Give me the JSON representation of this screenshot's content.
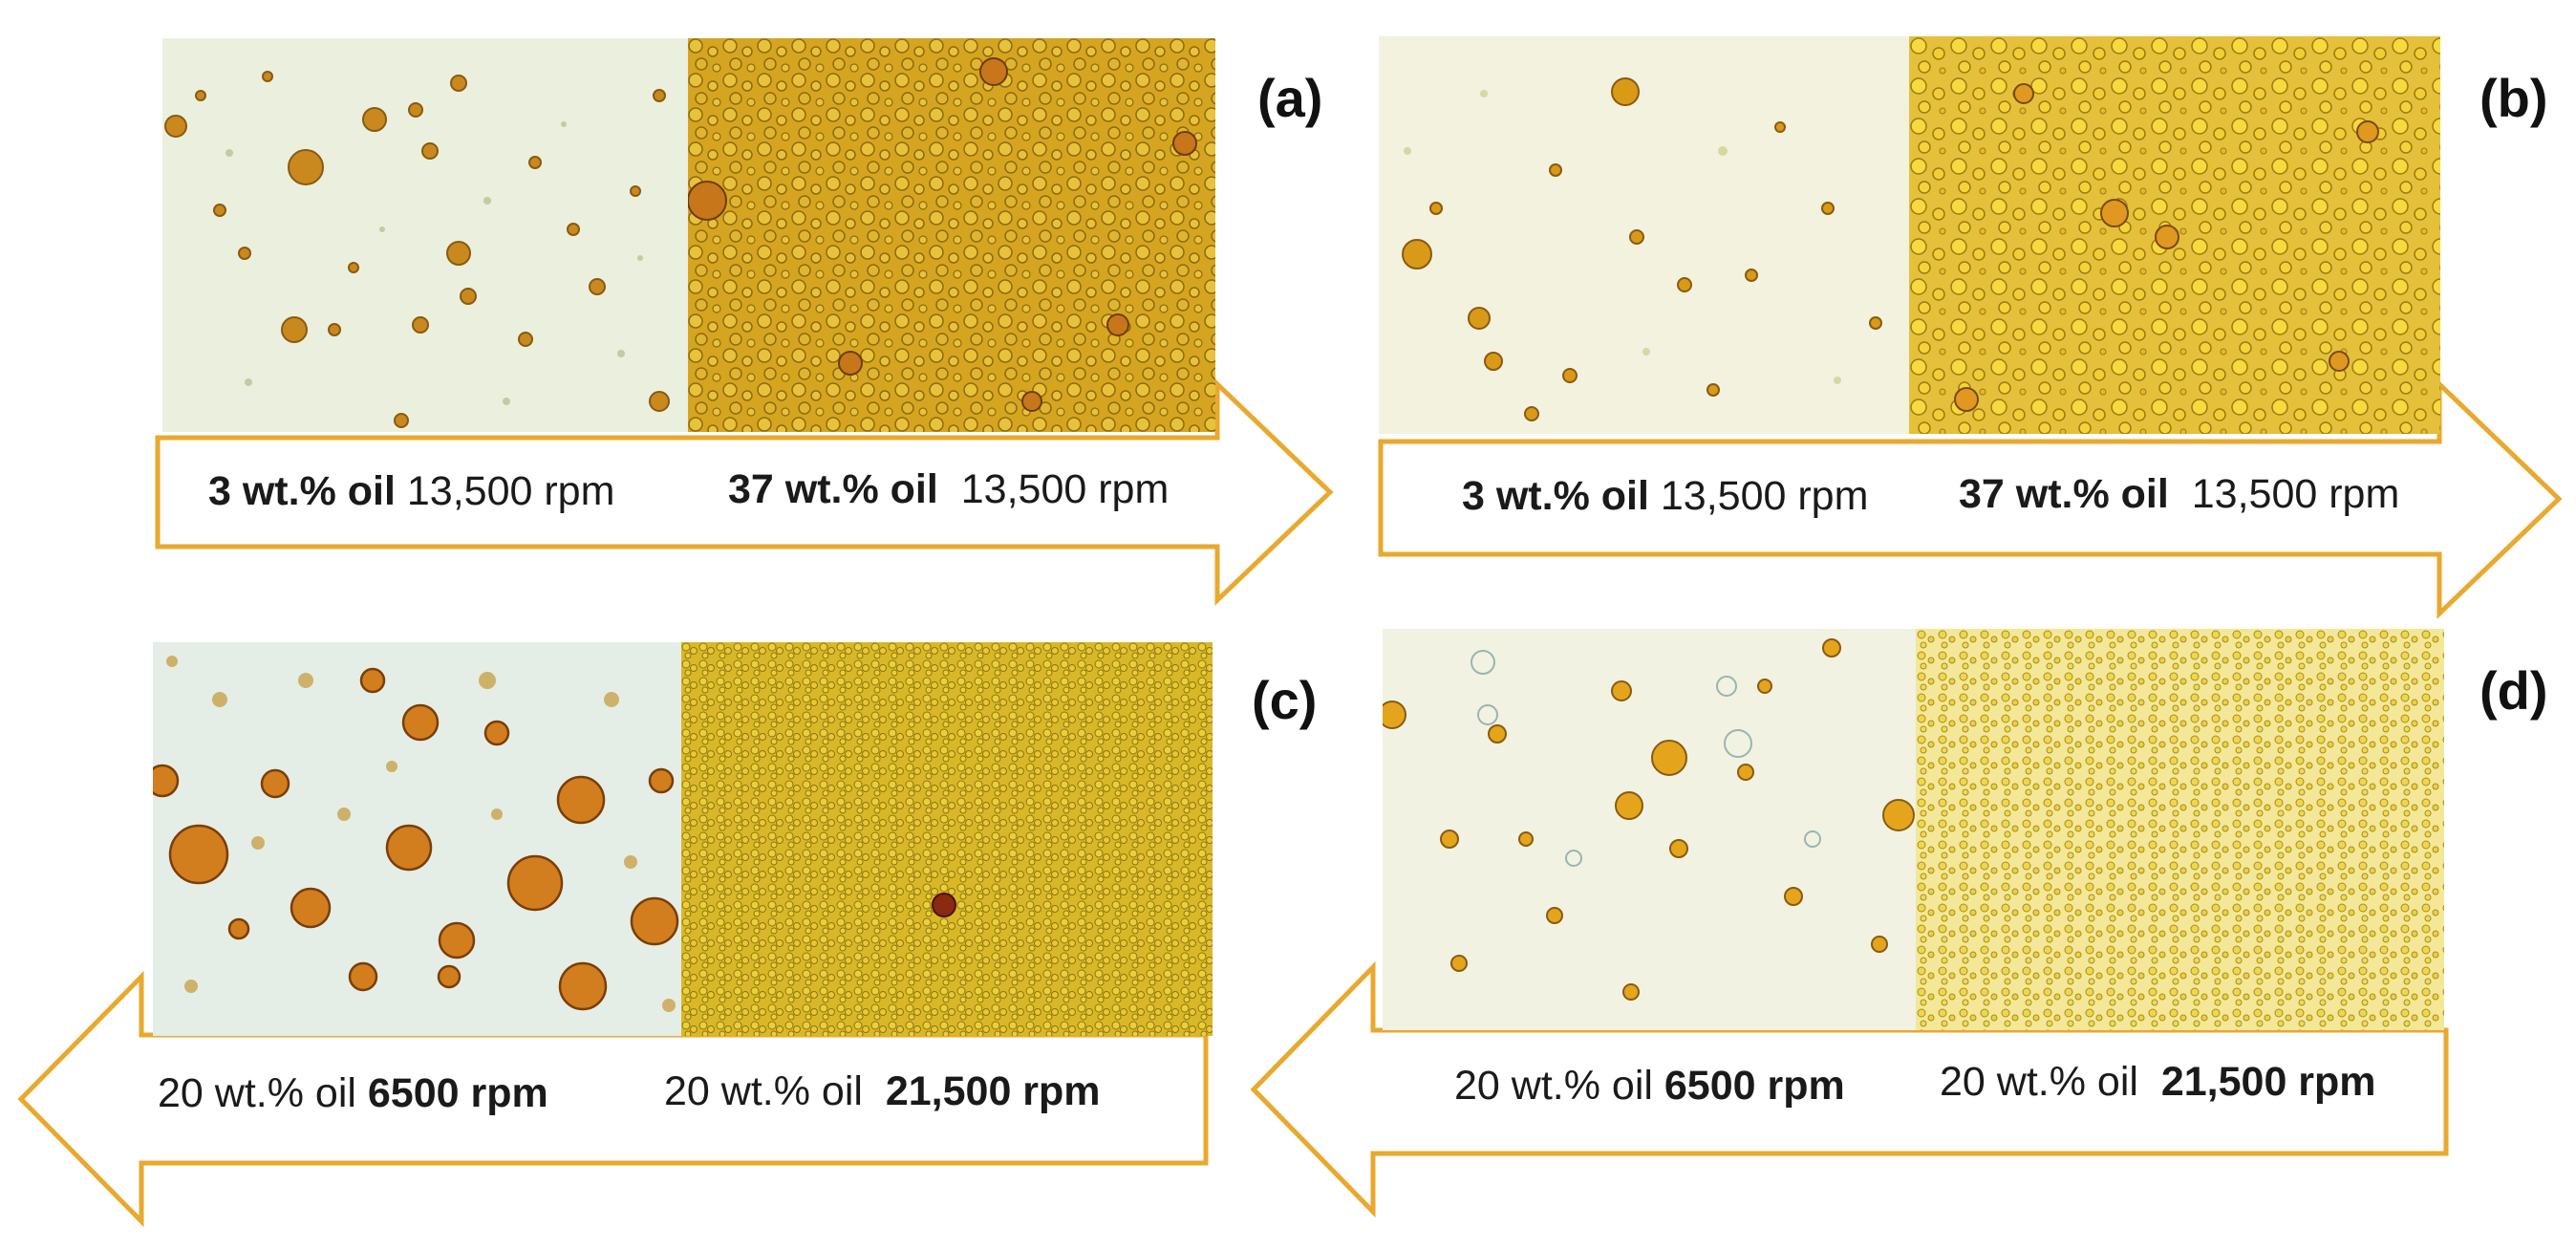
{
  "figure": {
    "accent_color": "#E8A92E",
    "panels": [
      {
        "id": "a",
        "label": "(a)",
        "direction": "right",
        "left_caption": {
          "bold": "3 wt.% oil",
          "normal": "13,500 rpm"
        },
        "right_caption": {
          "bold": "37 wt.% oil",
          "normal": "13,500 rpm"
        }
      },
      {
        "id": "b",
        "label": "(b)",
        "direction": "right",
        "left_caption": {
          "bold": "3 wt.% oil",
          "normal": "13,500 rpm"
        },
        "right_caption": {
          "bold": "37 wt.% oil",
          "normal": "13,500 rpm"
        }
      },
      {
        "id": "c",
        "label": "(c)",
        "direction": "left",
        "left_caption": {
          "normal": "20 wt.% oil",
          "bold": "6500 rpm"
        },
        "right_caption": {
          "normal": "20 wt.% oil",
          "bold": "21,500 rpm"
        }
      },
      {
        "id": "d",
        "label": "(d)",
        "direction": "left",
        "left_caption": {
          "normal": "20 wt.% oil",
          "bold": "6500 rpm"
        },
        "right_caption": {
          "normal": "20 wt.% oil",
          "bold": "21,500 rpm"
        }
      }
    ]
  }
}
